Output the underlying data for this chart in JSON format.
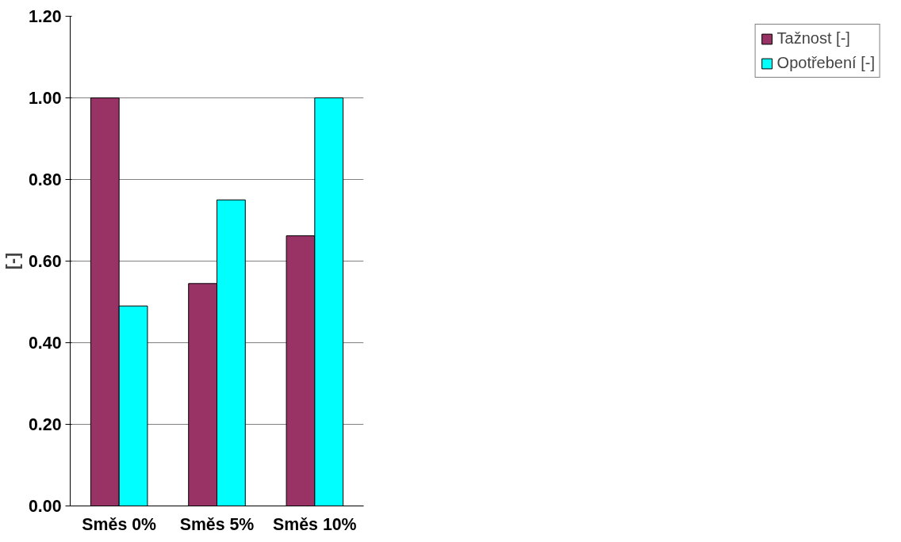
{
  "chart_data": {
    "type": "bar",
    "ylabel": "[-]",
    "categories": [
      "Směs 0%",
      "Směs 5%",
      "Směs 10%"
    ],
    "series": [
      {
        "name": "Tažnost [-]",
        "color": "#993366",
        "values": [
          1.0,
          0.545,
          0.662
        ]
      },
      {
        "name": "Opotřebení [-]",
        "color": "#00ffff",
        "values": [
          0.49,
          0.75,
          1.0
        ]
      }
    ],
    "ylim": [
      0,
      1.2
    ],
    "yticks": [
      {
        "value": 0,
        "label": "0.00"
      },
      {
        "value": 0.2,
        "label": "0.20"
      },
      {
        "value": 0.4,
        "label": "0.40"
      },
      {
        "value": 0.6,
        "label": "0.60"
      },
      {
        "value": 0.8,
        "label": "0.80"
      },
      {
        "value": 1.0,
        "label": "1.00"
      },
      {
        "value": 1.2,
        "label": "1.20"
      }
    ],
    "grid": "y",
    "legend": "right"
  }
}
